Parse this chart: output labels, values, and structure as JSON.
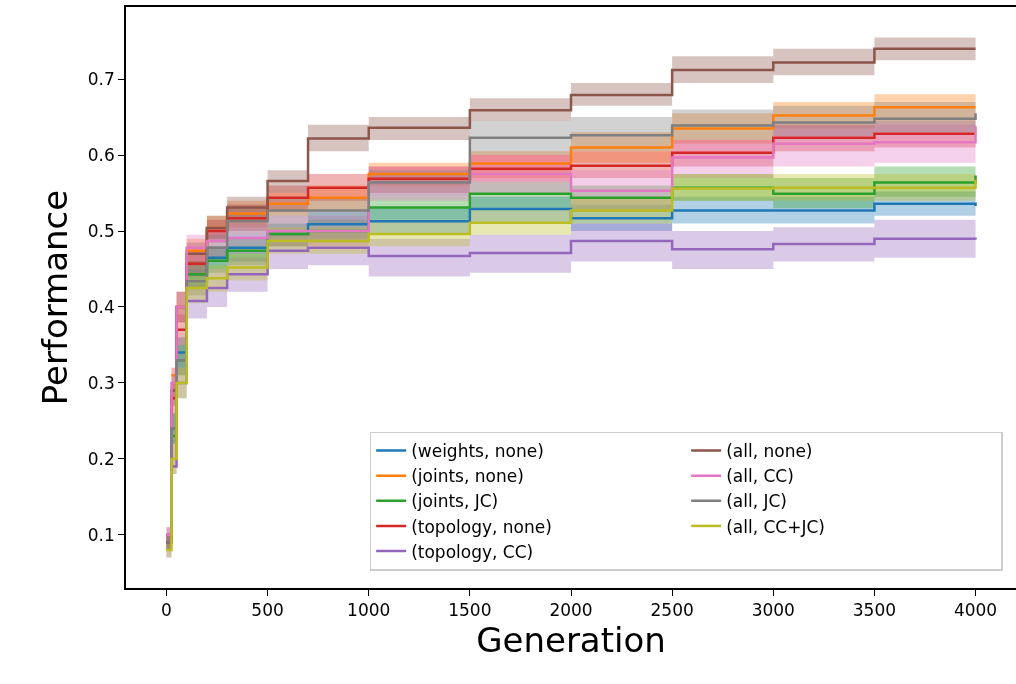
{
  "chart_data": {
    "type": "step",
    "xlabel": "Generation",
    "ylabel": "Performance",
    "x": [
      0,
      25,
      50,
      100,
      200,
      300,
      500,
      700,
      1000,
      1500,
      2000,
      2500,
      3000,
      3500,
      4000
    ],
    "xlim": [
      -200,
      4200
    ],
    "xticks": [
      0,
      500,
      1000,
      1500,
      2000,
      2500,
      3000,
      3500,
      4000
    ],
    "ylim": [
      0.03,
      0.795
    ],
    "yticks": [
      0.1,
      0.2,
      0.3,
      0.4,
      0.5,
      0.6,
      0.7
    ],
    "legend": "bottom right",
    "series": [
      {
        "name": "(weights, none)",
        "color": "#1f77b4",
        "values": [
          0.09,
          0.24,
          0.34,
          0.443,
          0.465,
          0.478,
          0.496,
          0.509,
          0.513,
          0.529,
          0.517,
          0.527,
          0.527,
          0.536,
          0.533
        ],
        "lower": [
          0.08,
          0.22,
          0.32,
          0.425,
          0.45,
          0.46,
          0.48,
          0.49,
          0.495,
          0.51,
          0.5,
          0.51,
          0.51,
          0.52,
          0.515
        ],
        "upper": [
          0.1,
          0.26,
          0.36,
          0.46,
          0.48,
          0.495,
          0.51,
          0.525,
          0.53,
          0.545,
          0.535,
          0.545,
          0.545,
          0.552,
          0.55
        ]
      },
      {
        "name": "(joints, none)",
        "color": "#ff7f0e",
        "values": [
          null,
          0.31,
          0.4,
          0.474,
          0.504,
          0.523,
          0.536,
          0.544,
          0.575,
          0.589,
          0.61,
          0.635,
          0.652,
          0.663,
          0.663
        ],
        "lower": [
          0.08,
          0.28,
          0.38,
          0.455,
          0.49,
          0.505,
          0.52,
          0.525,
          0.56,
          0.57,
          0.59,
          0.615,
          0.635,
          0.645,
          0.645
        ],
        "upper": [
          0.1,
          0.32,
          0.42,
          0.49,
          0.52,
          0.54,
          0.55,
          0.56,
          0.59,
          0.605,
          0.63,
          0.655,
          0.67,
          0.68,
          0.68
        ]
      },
      {
        "name": "(joints, JC)",
        "color": "#2ca02c",
        "values": [
          null,
          0.23,
          0.33,
          0.443,
          0.461,
          0.474,
          0.496,
          0.5,
          0.531,
          0.549,
          0.544,
          0.557,
          0.549,
          0.564,
          0.573
        ],
        "lower": [
          0.08,
          0.22,
          0.31,
          0.425,
          0.445,
          0.455,
          0.48,
          0.485,
          0.515,
          0.53,
          0.525,
          0.54,
          0.53,
          0.545,
          0.555
        ],
        "upper": [
          0.1,
          0.26,
          0.35,
          0.46,
          0.48,
          0.49,
          0.51,
          0.515,
          0.545,
          0.565,
          0.56,
          0.575,
          0.57,
          0.585,
          0.59
        ]
      },
      {
        "name": "(topology, none)",
        "color": "#d62728",
        "values": [
          0.09,
          0.28,
          0.37,
          0.457,
          0.5,
          0.517,
          0.544,
          0.557,
          0.569,
          0.582,
          0.586,
          0.603,
          0.623,
          0.628,
          0.628
        ],
        "lower": [
          0.08,
          0.26,
          0.35,
          0.44,
          0.485,
          0.5,
          0.525,
          0.54,
          0.55,
          0.565,
          0.57,
          0.585,
          0.605,
          0.61,
          0.61
        ],
        "upper": [
          0.1,
          0.3,
          0.39,
          0.475,
          0.515,
          0.535,
          0.56,
          0.575,
          0.585,
          0.6,
          0.605,
          0.62,
          0.64,
          0.645,
          0.645
        ]
      },
      {
        "name": "(topology, CC)",
        "color": "#9467bd",
        "values": [
          null,
          0.19,
          0.3,
          0.408,
          0.425,
          0.443,
          0.474,
          0.478,
          0.467,
          0.471,
          0.487,
          0.476,
          0.483,
          0.49,
          0.489
        ],
        "lower": [
          0.07,
          0.18,
          0.28,
          0.385,
          0.4,
          0.42,
          0.45,
          0.455,
          0.44,
          0.445,
          0.46,
          0.45,
          0.46,
          0.465,
          0.465
        ],
        "upper": [
          0.09,
          0.22,
          0.32,
          0.43,
          0.45,
          0.465,
          0.495,
          0.5,
          0.49,
          0.495,
          0.51,
          0.5,
          0.505,
          0.515,
          0.513
        ]
      },
      {
        "name": "(all, none)",
        "color": "#8c564b",
        "values": [
          0.1,
          0.29,
          0.4,
          0.47,
          0.504,
          0.531,
          0.566,
          0.622,
          0.636,
          0.659,
          0.679,
          0.712,
          0.722,
          0.74,
          0.74
        ],
        "lower": [
          0.09,
          0.27,
          0.38,
          0.455,
          0.49,
          0.515,
          0.55,
          0.605,
          0.62,
          0.645,
          0.665,
          0.695,
          0.705,
          0.725,
          0.725
        ],
        "upper": [
          0.11,
          0.31,
          0.42,
          0.485,
          0.52,
          0.545,
          0.58,
          0.64,
          0.65,
          0.675,
          0.695,
          0.73,
          0.74,
          0.755,
          0.755
        ]
      },
      {
        "name": "(all, CC)",
        "color": "#e377c2",
        "values": [
          0.1,
          0.3,
          0.4,
          0.478,
          0.487,
          0.491,
          0.5,
          0.5,
          0.564,
          0.575,
          0.553,
          0.597,
          0.615,
          0.617,
          0.638
        ],
        "lower": [
          0.09,
          0.28,
          0.38,
          0.46,
          0.465,
          0.47,
          0.48,
          0.48,
          0.54,
          0.55,
          0.525,
          0.57,
          0.585,
          0.59,
          0.61
        ],
        "upper": [
          0.11,
          0.32,
          0.42,
          0.495,
          0.505,
          0.51,
          0.52,
          0.52,
          0.585,
          0.6,
          0.58,
          0.62,
          0.64,
          0.64,
          0.665
        ]
      },
      {
        "name": "(all, JC)",
        "color": "#7f7f7f",
        "values": [
          0.09,
          0.24,
          0.33,
          0.434,
          0.478,
          0.513,
          0.527,
          0.527,
          0.564,
          0.623,
          0.626,
          0.639,
          0.643,
          0.648,
          0.655
        ],
        "lower": [
          0.08,
          0.22,
          0.31,
          0.415,
          0.46,
          0.495,
          0.51,
          0.51,
          0.545,
          0.6,
          0.605,
          0.62,
          0.625,
          0.63,
          0.635
        ],
        "upper": [
          0.1,
          0.26,
          0.35,
          0.45,
          0.495,
          0.53,
          0.545,
          0.545,
          0.58,
          0.645,
          0.65,
          0.66,
          0.665,
          0.67,
          0.675
        ]
      },
      {
        "name": "(all, CC+JC)",
        "color": "#bcbd22",
        "values": [
          0.08,
          0.2,
          0.3,
          0.425,
          0.438,
          0.452,
          0.487,
          0.487,
          0.496,
          0.511,
          0.527,
          0.556,
          0.557,
          0.557,
          0.568
        ],
        "lower": [
          0.07,
          0.18,
          0.28,
          0.405,
          0.42,
          0.435,
          0.47,
          0.47,
          0.48,
          0.495,
          0.51,
          0.54,
          0.54,
          0.54,
          0.55
        ],
        "upper": [
          0.09,
          0.22,
          0.32,
          0.445,
          0.455,
          0.47,
          0.505,
          0.505,
          0.515,
          0.53,
          0.545,
          0.575,
          0.575,
          0.575,
          0.585
        ]
      }
    ]
  }
}
